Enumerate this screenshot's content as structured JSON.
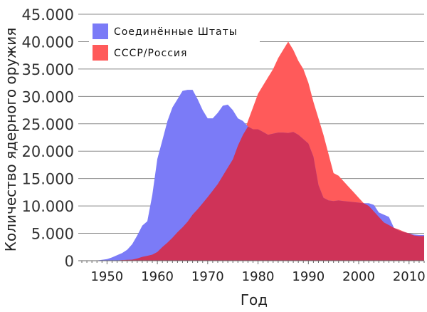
{
  "chart_data": {
    "type": "area",
    "title": "",
    "xlabel": "Год",
    "ylabel": "Количество ядерного оружия",
    "xlim": [
      1945,
      2013
    ],
    "ylim": [
      0,
      45000
    ],
    "x_ticks": [
      1950,
      1960,
      1970,
      1980,
      1990,
      2000,
      2010
    ],
    "x_tick_labels": [
      "1950",
      "1960",
      "1970",
      "1980",
      "1990",
      "2000",
      "2010"
    ],
    "y_ticks": [
      0,
      5000,
      10000,
      15000,
      20000,
      25000,
      30000,
      35000,
      40000,
      45000
    ],
    "y_tick_labels": [
      "0",
      "5.000",
      "10.000",
      "15.000",
      "20.000",
      "25.000",
      "30.000",
      "35.000",
      "40.000",
      "45.000"
    ],
    "grid": true,
    "legend_placement": "top-left",
    "overlap_color": "#cf3358",
    "x": [
      1945,
      1946,
      1947,
      1948,
      1949,
      1950,
      1951,
      1952,
      1953,
      1954,
      1955,
      1956,
      1957,
      1958,
      1959,
      1960,
      1961,
      1962,
      1963,
      1964,
      1965,
      1966,
      1967,
      1968,
      1969,
      1970,
      1971,
      1972,
      1973,
      1974,
      1975,
      1976,
      1977,
      1978,
      1979,
      1980,
      1981,
      1982,
      1983,
      1984,
      1985,
      1986,
      1987,
      1988,
      1989,
      1990,
      1991,
      1992,
      1993,
      1994,
      1995,
      1996,
      1997,
      1998,
      1999,
      2000,
      2001,
      2002,
      2003,
      2004,
      2005,
      2006,
      2007,
      2008,
      2009,
      2010,
      2011,
      2012,
      2013
    ],
    "series": [
      {
        "name": "Соединённые Штаты",
        "color": "#7b7bf7",
        "values": [
          0,
          5,
          13,
          50,
          170,
          300,
          600,
          1000,
          1400,
          2000,
          3000,
          4600,
          6400,
          7200,
          12000,
          18600,
          22000,
          25500,
          28000,
          29500,
          31000,
          31200,
          31200,
          29500,
          27500,
          26000,
          26000,
          27000,
          28300,
          28500,
          27500,
          26000,
          25500,
          24500,
          24000,
          24000,
          23500,
          23000,
          23200,
          23400,
          23400,
          23300,
          23500,
          23000,
          22200,
          21400,
          19000,
          13800,
          11500,
          11000,
          10900,
          11000,
          10900,
          10800,
          10700,
          10600,
          10500,
          10500,
          10200,
          8800,
          8400,
          8000,
          6000,
          5500,
          5200,
          5000,
          4800,
          4700,
          4700
        ]
      },
      {
        "name": "СССР/Россия",
        "color": "#ff5a5a",
        "values": [
          0,
          0,
          0,
          0,
          0,
          5,
          25,
          50,
          120,
          150,
          200,
          400,
          700,
          900,
          1100,
          1600,
          2500,
          3300,
          4200,
          5200,
          6100,
          7100,
          8400,
          9400,
          10500,
          11600,
          12800,
          14000,
          15500,
          17000,
          18500,
          21000,
          23000,
          25500,
          28000,
          30500,
          32000,
          33500,
          35000,
          37000,
          38500,
          40000,
          38500,
          36500,
          35000,
          32500,
          29000,
          26000,
          23000,
          19500,
          16000,
          15500,
          14500,
          13500,
          12500,
          11500,
          10500,
          10000,
          9000,
          8000,
          7000,
          6500,
          6000,
          5700,
          5300,
          5000,
          4600,
          4500,
          4500
        ]
      }
    ]
  }
}
